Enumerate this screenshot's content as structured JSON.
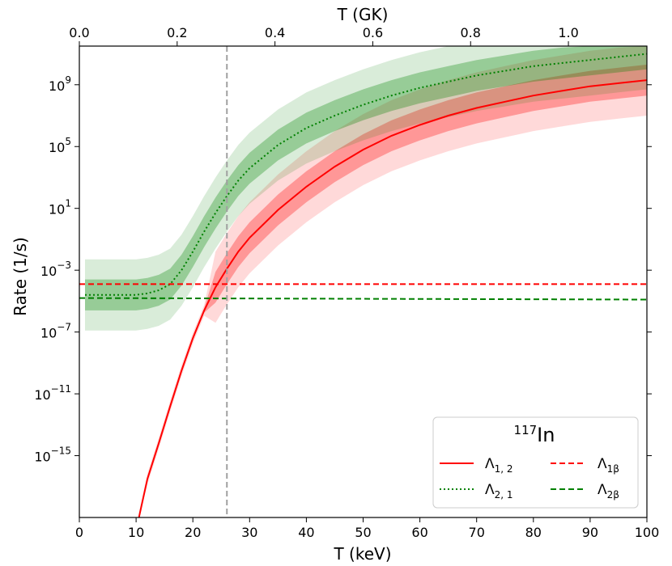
{
  "chart_data": {
    "type": "line",
    "xlabel": "T (keV)",
    "x2label": "T (GK)",
    "ylabel": "Rate (1/s)",
    "xlim": [
      0,
      100
    ],
    "ylim_log10": [
      -19,
      11.5
    ],
    "x_ticks": [
      0,
      10,
      20,
      30,
      40,
      50,
      60,
      70,
      80,
      90,
      100
    ],
    "x_tick_labels": [
      "0",
      "10",
      "20",
      "30",
      "40",
      "50",
      "60",
      "70",
      "80",
      "90",
      "100"
    ],
    "x2_ticks_GK": [
      0.0,
      0.2,
      0.4,
      0.6,
      0.8,
      1.0
    ],
    "x2_tick_labels": [
      "0.0",
      "0.2",
      "0.4",
      "0.6",
      "0.8",
      "1.0"
    ],
    "y_ticks_log10": [
      -15,
      -11,
      -7,
      -3,
      1,
      5,
      9
    ],
    "y_tick_labels": [
      {
        "base": "10",
        "exp": "−15"
      },
      {
        "base": "10",
        "exp": "−11"
      },
      {
        "base": "10",
        "exp": "−7"
      },
      {
        "base": "10",
        "exp": "−3"
      },
      {
        "base": "10",
        "exp": "1"
      },
      {
        "base": "10",
        "exp": "5"
      },
      {
        "base": "10",
        "exp": "9"
      }
    ],
    "vline_x": 26,
    "legend": {
      "title_sup": "117",
      "title_main": "In",
      "position": "lower-right",
      "entries": [
        {
          "key": "l12",
          "sym": "Λ",
          "sub": "1, 2"
        },
        {
          "key": "l1b",
          "sym": "Λ",
          "sub": "1β"
        },
        {
          "key": "l21",
          "sym": "Λ",
          "sub": "2, 1"
        },
        {
          "key": "l2b",
          "sym": "Λ",
          "sub": "2β"
        }
      ]
    },
    "series": [
      {
        "key": "l12",
        "name": "Λ1,2",
        "color": "#ff0000",
        "style": "solid",
        "x": [
          10.5,
          12,
          14,
          16,
          18,
          20,
          22,
          24,
          26,
          28,
          30,
          35,
          40,
          45,
          50,
          55,
          60,
          65,
          70,
          75,
          80,
          85,
          90,
          95,
          100
        ],
        "log10_y": [
          -19.0,
          -16.5,
          -14.2,
          -11.8,
          -9.5,
          -7.4,
          -5.6,
          -4.1,
          -2.9,
          -1.8,
          -0.9,
          0.9,
          2.4,
          3.7,
          4.8,
          5.7,
          6.4,
          7.0,
          7.5,
          7.9,
          8.3,
          8.6,
          8.9,
          9.1,
          9.3
        ],
        "band_inner": 1.0,
        "band_outer": 2.3
      },
      {
        "key": "l21",
        "name": "Λ2,1",
        "color": "#008000",
        "style": "dotted",
        "x": [
          1,
          5,
          10,
          12,
          14,
          16,
          18,
          20,
          22,
          24,
          26,
          28,
          30,
          35,
          40,
          45,
          50,
          55,
          60,
          65,
          70,
          75,
          80,
          85,
          90,
          95,
          100
        ],
        "log10_y": [
          -4.6,
          -4.6,
          -4.6,
          -4.5,
          -4.3,
          -3.9,
          -3.0,
          -1.8,
          -0.5,
          0.7,
          1.8,
          2.8,
          3.6,
          5.1,
          6.2,
          7.0,
          7.7,
          8.3,
          8.8,
          9.2,
          9.6,
          9.9,
          10.2,
          10.4,
          10.6,
          10.8,
          11.0
        ],
        "band_inner": 1.0,
        "band_outer": 2.3
      },
      {
        "key": "l1b",
        "name": "Λ1β",
        "color": "#ff0000",
        "style": "dashed",
        "x": [
          0,
          100
        ],
        "log10_y": [
          -3.9,
          -3.9
        ]
      },
      {
        "key": "l2b",
        "name": "Λ2β",
        "color": "#008000",
        "style": "dashed",
        "x": [
          0,
          100
        ],
        "log10_y": [
          -4.8,
          -4.9
        ]
      }
    ]
  }
}
